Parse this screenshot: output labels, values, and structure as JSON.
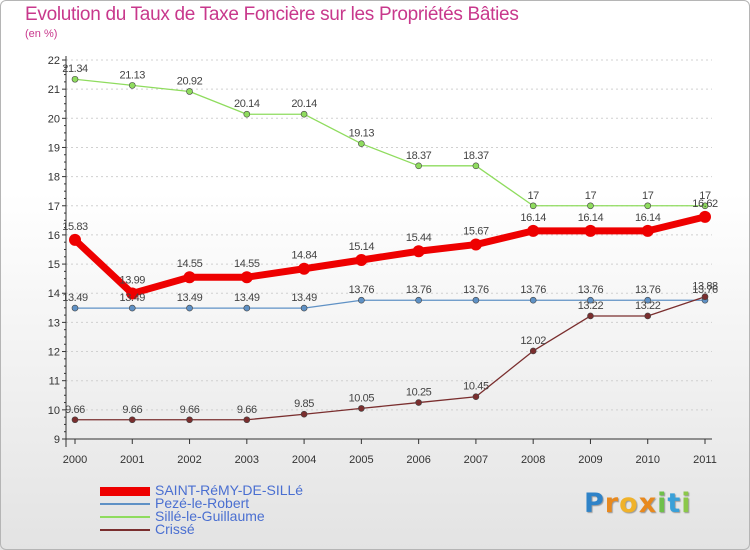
{
  "chart_data": {
    "type": "line",
    "title": "Evolution du Taux de Taxe Foncière sur les Propriétés Bâties",
    "subtitle": "(en %)",
    "categories": [
      "2000",
      "2001",
      "2002",
      "2003",
      "2004",
      "2005",
      "2006",
      "2007",
      "2008",
      "2009",
      "2010",
      "2011"
    ],
    "ylim": [
      9,
      22
    ],
    "yticks": [
      "9",
      "10",
      "11",
      "12",
      "13",
      "14",
      "15",
      "16",
      "17",
      "18",
      "19",
      "20",
      "21",
      "22"
    ],
    "series": [
      {
        "name": "SAINT-RéMY-DE-SILLé",
        "color": "#ee0000",
        "values": [
          15.83,
          13.99,
          14.55,
          14.55,
          14.84,
          15.14,
          15.44,
          15.67,
          16.14,
          16.14,
          16.14,
          16.62
        ],
        "labels": [
          "15.83",
          "13.99",
          "14.55",
          "14.55",
          "14.84",
          "15.14",
          "15.44",
          "15.67",
          "16.14",
          "16.14",
          "16.14",
          "16.62"
        ]
      },
      {
        "name": "Pezé-le-Robert",
        "color": "#5f91c5",
        "values": [
          13.49,
          13.49,
          13.49,
          13.49,
          13.49,
          13.76,
          13.76,
          13.76,
          13.76,
          13.76,
          13.76,
          13.76
        ],
        "labels": [
          "13.49",
          "13.49",
          "13.49",
          "13.49",
          "13.49",
          "13.76",
          "13.76",
          "13.76",
          "13.76",
          "13.76",
          "13.76",
          "13.76"
        ]
      },
      {
        "name": "Sillé-le-Guillaume",
        "color": "#8fdc5e",
        "values": [
          21.34,
          21.13,
          20.92,
          20.14,
          20.14,
          19.13,
          18.37,
          18.37,
          17,
          17,
          17,
          17
        ],
        "labels": [
          "21.34",
          "21.13",
          "20.92",
          "20.14",
          "20.14",
          "19.13",
          "18.37",
          "18.37",
          "17",
          "17",
          "17",
          "17"
        ]
      },
      {
        "name": "Crissé",
        "color": "#7a2e2e",
        "values": [
          9.66,
          9.66,
          9.66,
          9.66,
          9.85,
          10.05,
          10.25,
          10.45,
          12.02,
          13.22,
          13.22,
          13.88
        ],
        "labels": [
          "9.66",
          "9.66",
          "9.66",
          "9.66",
          "9.85",
          "10.05",
          "10.25",
          "10.45",
          "12.02",
          "13.22",
          "13.22",
          "13.88"
        ]
      }
    ]
  },
  "logo": {
    "letters": [
      "P",
      "r",
      "o",
      "x",
      "i",
      "t",
      "i"
    ],
    "colors": [
      "#2f83c8",
      "#e8891e",
      "#f0b22a",
      "#e8891e",
      "#6fc04a",
      "#3aa0d8",
      "#8cc84a"
    ]
  }
}
